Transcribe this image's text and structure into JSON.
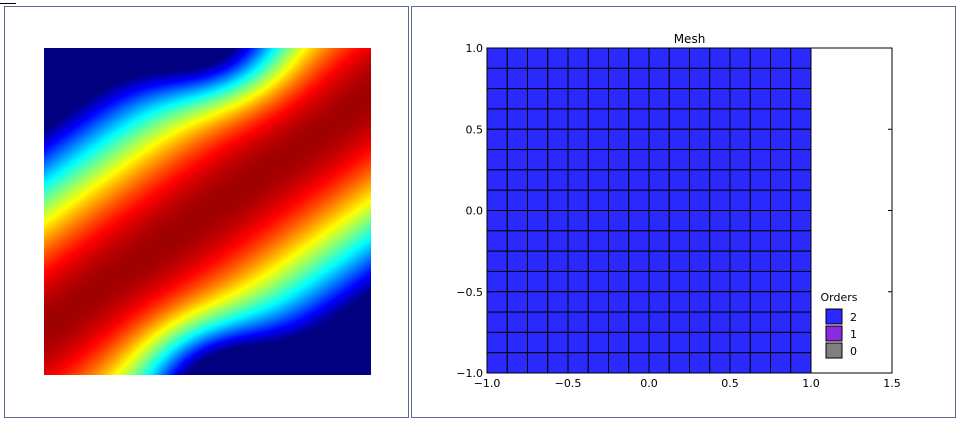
{
  "left_panel": {
    "plot": "solution-heatmap",
    "colormap": [
      "#0000ff",
      "#00ffff",
      "#00ff00",
      "#ffff00",
      "#ff8000",
      "#ff0000"
    ]
  },
  "chart_data": [
    {
      "type": "heatmap",
      "panel": "left",
      "title": "",
      "xlabel": "",
      "ylabel": "",
      "axes_visible": false,
      "colormap": "jet",
      "value_range": [
        "low",
        "high"
      ],
      "pattern": "diagonal ridge of high values from bottom-left to top-right, low values (blue) at top-center and bottom-center"
    },
    {
      "type": "mesh",
      "panel": "right",
      "title": "Mesh",
      "xlabel": "",
      "ylabel": "",
      "xlim": [
        -1.0,
        1.5
      ],
      "ylim": [
        -1.0,
        1.0
      ],
      "xticks": [
        "−1.0",
        "−0.5",
        "0.0",
        "0.5",
        "1.0",
        "1.5"
      ],
      "xtick_values": [
        -1.0,
        -0.5,
        0.0,
        0.5,
        1.0,
        1.5
      ],
      "yticks": [
        "−1.0",
        "−0.5",
        "0.0",
        "0.5",
        "1.0"
      ],
      "ytick_values": [
        -1.0,
        -0.5,
        0.0,
        0.5,
        1.0
      ],
      "mesh_extent": {
        "x": [
          -1.0,
          1.0
        ],
        "y": [
          -1.0,
          1.0
        ]
      },
      "grid_cells": {
        "nx": 16,
        "ny": 16
      },
      "element_order": 2,
      "element_color": "#2a2aff",
      "legend": {
        "title": "Orders",
        "placement": "bottom-right",
        "entries": [
          {
            "label": "2",
            "color": "#2a2aff"
          },
          {
            "label": "1",
            "color": "#8a2be2"
          },
          {
            "label": "0",
            "color": "#808080"
          }
        ]
      }
    }
  ]
}
